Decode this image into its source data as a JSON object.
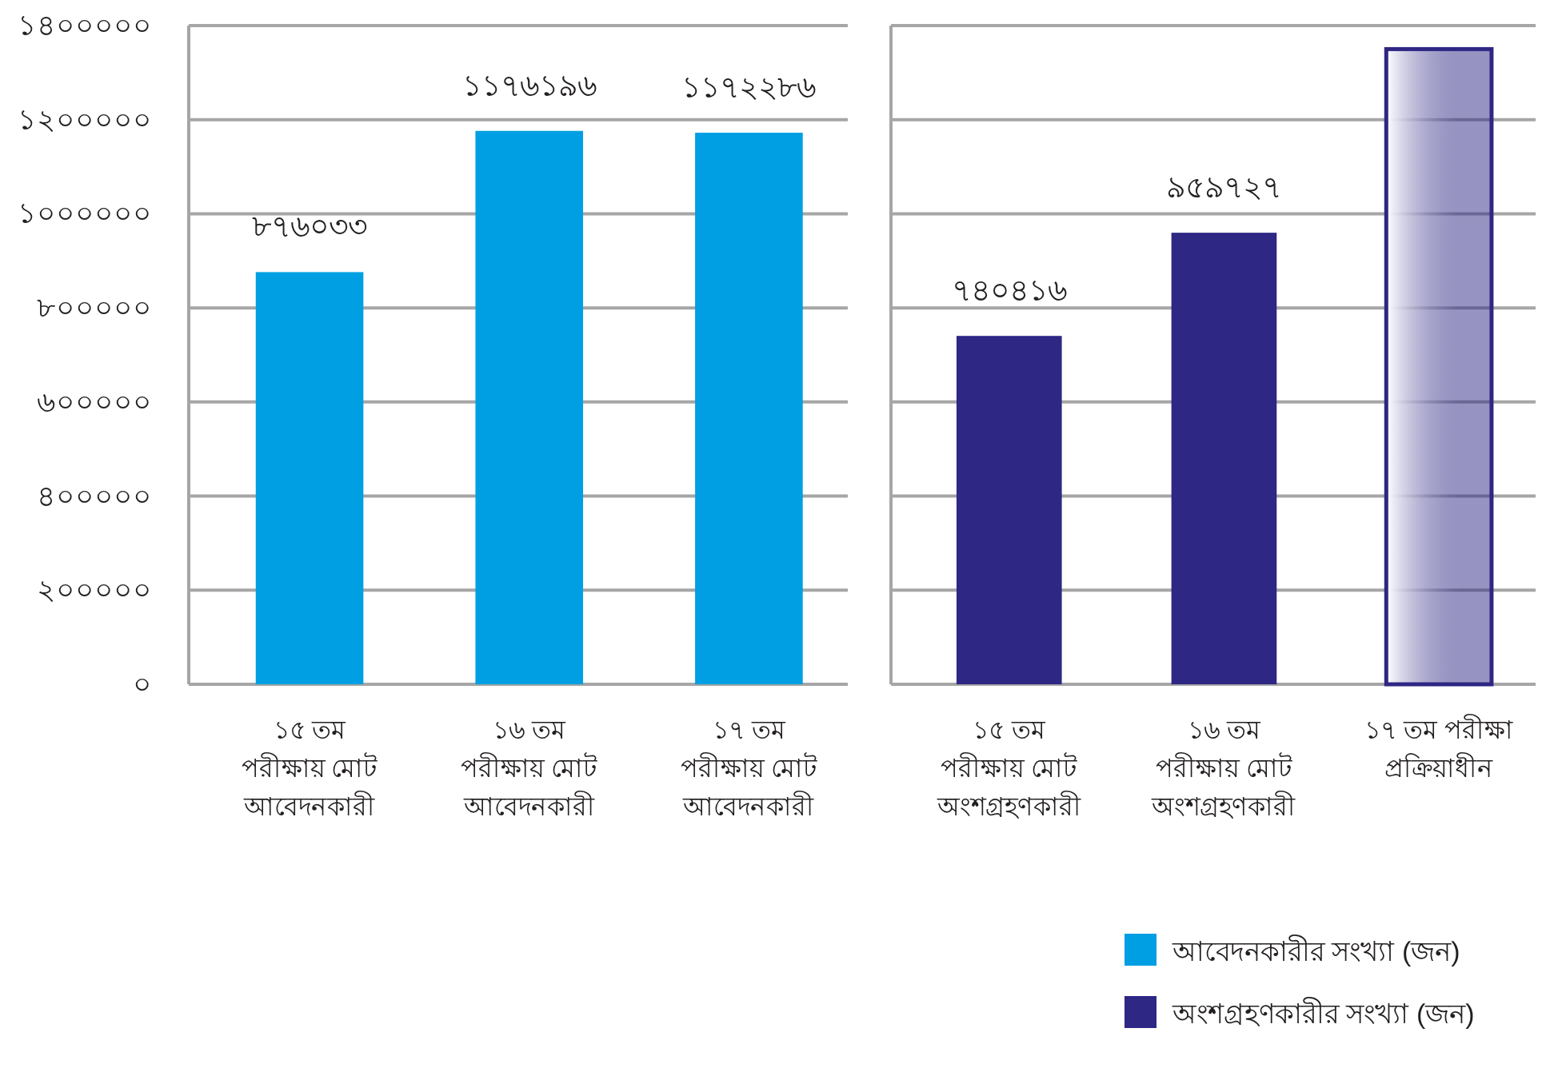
{
  "chart_data": [
    {
      "type": "bar",
      "categories": [
        "১৫ তম\nপরীক্ষায় মোট\nআবেদনকারী",
        "১৬ তম\nপরীক্ষায় মোট\nআবেদনকারী",
        "১৭ তম\nপরীক্ষায় মোট\nআবেদনকারী"
      ],
      "series": [
        {
          "name": "আবেদনকারীর সংখ্যা (জন)",
          "color": "#009fe3",
          "values": [
            876033,
            1176196,
            1172286
          ],
          "value_labels": [
            "৮৭৬০৩৩",
            "১১৭৬১৯৬",
            "১১৭২২৮৬"
          ]
        }
      ],
      "ylim": [
        0,
        1400000
      ],
      "yticks": [
        {
          "value": 0,
          "label": "০"
        },
        {
          "value": 200000,
          "label": "২০০০০০"
        },
        {
          "value": 400000,
          "label": "৪০০০০০"
        },
        {
          "value": 600000,
          "label": "৬০০০০০"
        },
        {
          "value": 800000,
          "label": "৮০০০০০"
        },
        {
          "value": 1000000,
          "label": "১০০০০০০"
        },
        {
          "value": 1200000,
          "label": "১২০০০০০"
        },
        {
          "value": 1400000,
          "label": "১৪০০০০০"
        }
      ],
      "grid": "y"
    },
    {
      "type": "bar",
      "categories": [
        "১৫ তম\nপরীক্ষায় মোট\nঅংশগ্রহণকারী",
        "১৬ তম\nপরীক্ষায় মোট\nঅংশগ্রহণকারী",
        "১৭ তম পরীক্ষা\nপ্রক্রিয়াধীন"
      ],
      "series": [
        {
          "name": "অংশগ্রহণকারীর সংখ্যা (জন)",
          "color": "#2e2784",
          "values": [
            740416,
            959727,
            null
          ],
          "value_labels": [
            "৭৪০৪১৬",
            "৯৫৯৭২৭",
            null
          ]
        },
        {
          "color": "#2e2784",
          "values": [
            null,
            null,
            1350000
          ]
        }
      ],
      "ylim": [
        0,
        1400000
      ],
      "yticks": [
        {
          "value": 0,
          "label": null
        },
        {
          "value": 200000,
          "label": null
        },
        {
          "value": 400000,
          "label": null
        },
        {
          "value": 600000,
          "label": null
        },
        {
          "value": 800000,
          "label": null
        },
        {
          "value": 1000000,
          "label": null
        },
        {
          "value": 1200000,
          "label": null
        },
        {
          "value": 1400000,
          "label": null
        }
      ],
      "tick_labels": "x",
      "grid": "y",
      "legend": "bottom right"
    }
  ]
}
